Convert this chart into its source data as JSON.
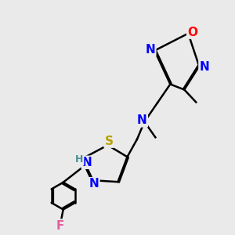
{
  "bg_color": "#eaeaea",
  "atom_colors": {
    "C": "#000000",
    "N": "#0000ff",
    "O": "#ff0000",
    "S": "#b8a000",
    "F": "#e060a0",
    "H": "#4a9090"
  },
  "bond_color": "#000000",
  "bond_width": 1.8,
  "dbo": 0.055,
  "fs": 11,
  "fs_s": 9
}
